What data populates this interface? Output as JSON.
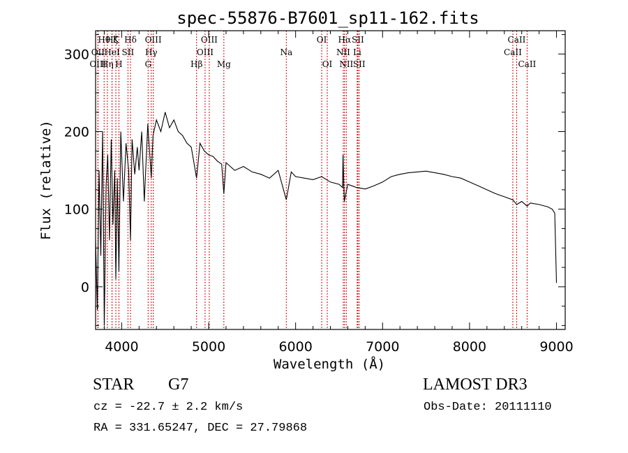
{
  "chart_data": {
    "type": "line",
    "title": "spec-55876-B7601_sp11-162.fits",
    "xlabel": "Wavelength (Å)",
    "ylabel": "Flux (relative)",
    "xlim": [
      3700,
      9100
    ],
    "ylim": [
      -55,
      330
    ],
    "xticks": [
      4000,
      5000,
      6000,
      7000,
      8000,
      9000
    ],
    "yticks": [
      0,
      100,
      200,
      300
    ],
    "series": [
      {
        "name": "flux",
        "x": [
          3700,
          3720,
          3740,
          3760,
          3780,
          3800,
          3820,
          3840,
          3860,
          3880,
          3900,
          3920,
          3933,
          3950,
          3968,
          3990,
          4020,
          4050,
          4080,
          4101,
          4120,
          4150,
          4180,
          4200,
          4230,
          4260,
          4300,
          4340,
          4360,
          4400,
          4450,
          4500,
          4550,
          4600,
          4650,
          4700,
          4750,
          4800,
          4861,
          4900,
          4950,
          5000,
          5050,
          5100,
          5150,
          5175,
          5200,
          5300,
          5400,
          5500,
          5600,
          5700,
          5800,
          5893,
          5950,
          6000,
          6100,
          6200,
          6300,
          6400,
          6500,
          6540,
          6545,
          6560,
          6575,
          6600,
          6650,
          6700,
          6800,
          6900,
          7000,
          7100,
          7200,
          7300,
          7400,
          7500,
          7600,
          7700,
          7800,
          7900,
          8000,
          8100,
          8200,
          8300,
          8400,
          8498,
          8542,
          8600,
          8662,
          8700,
          8800,
          8900,
          8950,
          8980,
          9000
        ],
        "values": [
          60,
          -30,
          150,
          40,
          200,
          -50,
          130,
          170,
          60,
          190,
          80,
          150,
          10,
          140,
          20,
          200,
          110,
          185,
          150,
          60,
          190,
          145,
          180,
          150,
          200,
          110,
          210,
          140,
          195,
          215,
          200,
          225,
          205,
          215,
          200,
          195,
          185,
          180,
          140,
          185,
          175,
          170,
          168,
          162,
          158,
          120,
          160,
          150,
          155,
          148,
          145,
          140,
          150,
          112,
          148,
          142,
          140,
          138,
          142,
          135,
          132,
          128,
          170,
          110,
          118,
          132,
          130,
          128,
          126,
          130,
          135,
          142,
          145,
          147,
          148,
          149,
          147,
          145,
          142,
          140,
          135,
          130,
          125,
          120,
          116,
          112,
          106,
          110,
          104,
          108,
          106,
          103,
          100,
          95,
          5
        ]
      }
    ],
    "lines": [
      {
        "label": "Hθ",
        "x": 3798,
        "row": 0
      },
      {
        "label": "OII",
        "x": 3727,
        "row": 1
      },
      {
        "label": "OIII",
        "x": 3727,
        "row": 2
      },
      {
        "label": "Hη",
        "x": 3835,
        "row": 2
      },
      {
        "label": "Hζ",
        "x": 3889,
        "row": 0
      },
      {
        "label": "HeI",
        "x": 3889,
        "row": 1
      },
      {
        "label": "K",
        "x": 3933,
        "row": 0
      },
      {
        "label": "H",
        "x": 3968,
        "row": 2
      },
      {
        "label": "SII",
        "x": 4072,
        "row": 1
      },
      {
        "label": "Hδ",
        "x": 4101,
        "row": 0
      },
      {
        "label": "OIII",
        "x": 4363,
        "row": 0
      },
      {
        "label": "Hγ",
        "x": 4340,
        "row": 1
      },
      {
        "label": "G",
        "x": 4304,
        "row": 2
      },
      {
        "label": "Hβ",
        "x": 4861,
        "row": 2
      },
      {
        "label": "OIII",
        "x": 4959,
        "row": 1
      },
      {
        "label": "OIII",
        "x": 5007,
        "row": 0
      },
      {
        "label": "Mg",
        "x": 5175,
        "row": 2
      },
      {
        "label": "Na",
        "x": 5893,
        "row": 1
      },
      {
        "label": "OI",
        "x": 6300,
        "row": 0
      },
      {
        "label": "OI",
        "x": 6364,
        "row": 2
      },
      {
        "label": "Hα",
        "x": 6563,
        "row": 0
      },
      {
        "label": "NII",
        "x": 6548,
        "row": 1
      },
      {
        "label": "NII",
        "x": 6583,
        "row": 2
      },
      {
        "label": "Li",
        "x": 6708,
        "row": 1
      },
      {
        "label": "SII",
        "x": 6716,
        "row": 0
      },
      {
        "label": "SII",
        "x": 6731,
        "row": 2
      },
      {
        "label": "CaII",
        "x": 8542,
        "row": 0
      },
      {
        "label": "CaII",
        "x": 8498,
        "row": 1
      },
      {
        "label": "CaII",
        "x": 8662,
        "row": 2
      }
    ]
  },
  "info": {
    "class": "STAR",
    "subclass": "G7",
    "survey": "LAMOST DR3",
    "cz": "cz = -22.7 ± 2.2 km/s",
    "obs_date": "Obs-Date: 20111110",
    "coords": "RA = 331.65247, DEC =  27.79868"
  },
  "colors": {
    "spectrum": "#000000",
    "line_markers": "#cc0000",
    "axes": "#000000"
  }
}
